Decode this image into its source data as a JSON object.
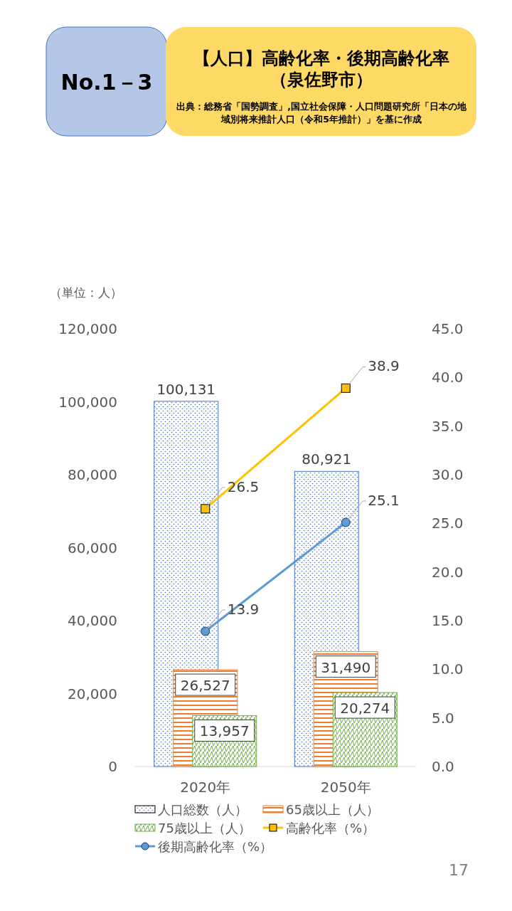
{
  "chart_data": {
    "type": "bar",
    "title": "【人口】高齢化率・後期高齢化率",
    "subtitle": "（泉佐野市）",
    "ylabel": "（単位：人）",
    "annotations": [
      "No.1－3",
      "出典：総務省「国勢調査」,国立社会保障・人口問題研究所「日本の地域別将来推計人口（令和5年推計）」を基に作成",
      "17"
    ],
    "categories": [
      "2020年",
      "2050年"
    ],
    "series": [
      {
        "name": "人口総数（人）",
        "color": "#4472c4",
        "values": [
          100131,
          80921
        ],
        "value_labels": [
          "100,131",
          "80,921"
        ]
      },
      {
        "name": "65歳以上（人）",
        "color": "#ed7d31",
        "values": [
          26527,
          31490
        ],
        "value_labels": [
          "26,527",
          "31,490"
        ]
      },
      {
        "name": "75歳以上（人）",
        "color": "#70ad47",
        "values": [
          13957,
          20274
        ],
        "value_labels": [
          "13,957",
          "20,274"
        ]
      },
      {
        "name": "高齢化率（%）",
        "type": "line",
        "axis": "y2",
        "color": "#ffc000",
        "marker": "square",
        "values": [
          26.5,
          38.9
        ],
        "value_labels": [
          "26.5",
          "38.9"
        ]
      },
      {
        "name": "後期高齢化率（%）",
        "type": "line",
        "axis": "y2",
        "color": "#5b9bd5",
        "marker": "circle",
        "values": [
          13.9,
          25.1
        ],
        "value_labels": [
          "13.9",
          "25.1"
        ]
      }
    ],
    "ylim": [
      0,
      120000
    ],
    "yticks": [
      0,
      {
        "value": 20000,
        "label": "20,000"
      },
      {
        "value": 40000,
        "label": "40,000"
      },
      {
        "value": 60000,
        "label": "60,000"
      },
      {
        "value": 80000,
        "label": "80,000"
      },
      {
        "value": 100000,
        "label": "100,000"
      },
      {
        "value": 120000,
        "label": "120,000"
      }
    ],
    "y2lim": [
      0,
      45
    ],
    "y2ticks": [
      {
        "value": 0,
        "label": "0.0"
      },
      {
        "value": 5,
        "label": "5.0"
      },
      {
        "value": 10,
        "label": "10.0"
      },
      {
        "value": 15,
        "label": "15.0"
      },
      {
        "value": 20,
        "label": "20.0"
      },
      {
        "value": 25,
        "label": "25.0"
      },
      {
        "value": 30,
        "label": "30.0"
      },
      {
        "value": 35,
        "label": "35.0"
      },
      {
        "value": 40,
        "label": "40.0"
      },
      {
        "value": 45,
        "label": "45.0"
      }
    ],
    "legend": "bottom",
    "grid": false
  }
}
